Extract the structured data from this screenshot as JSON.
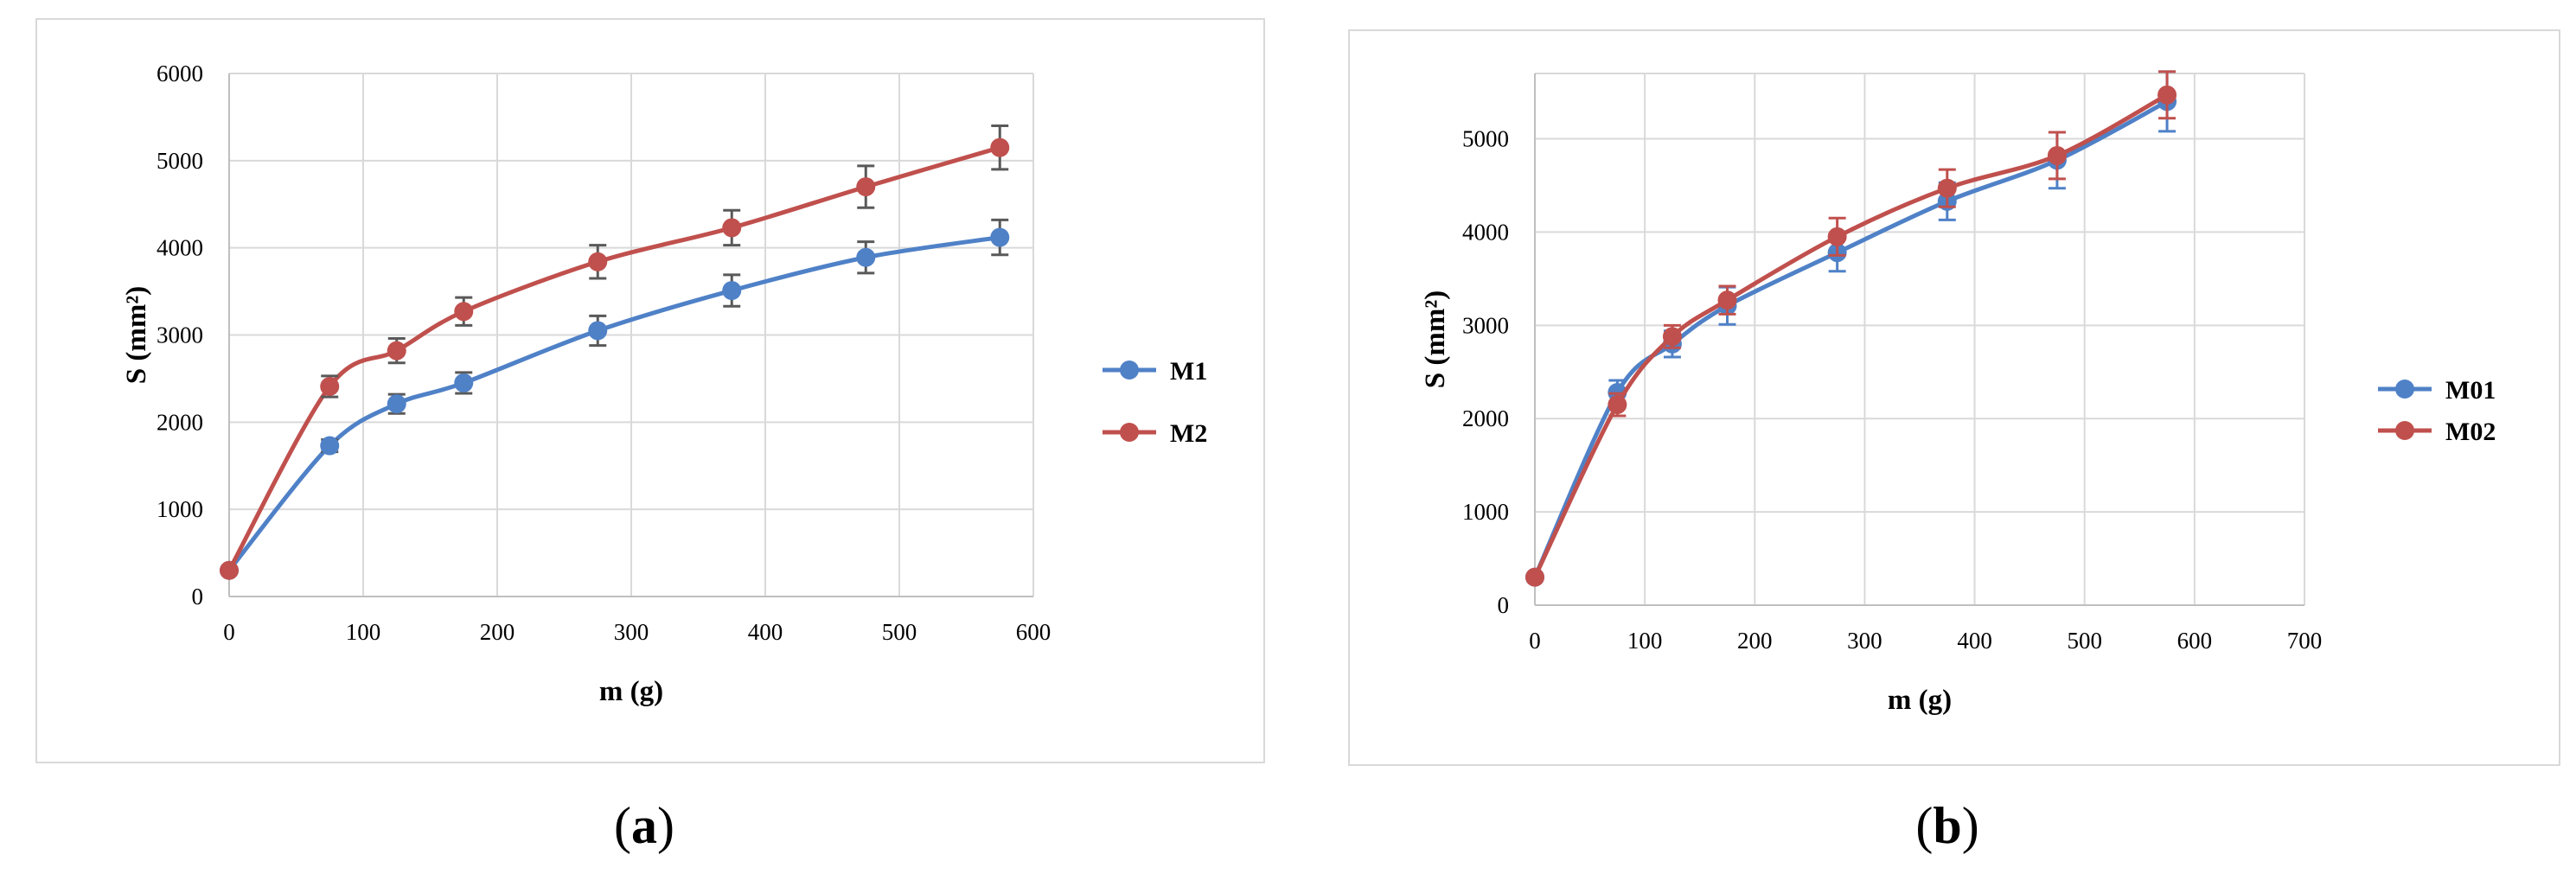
{
  "chart_data": [
    {
      "type": "line",
      "panel_label": "a",
      "xlabel": "m (g)",
      "ylabel": "S (mm²)",
      "xlim": [
        0,
        600
      ],
      "ylim": [
        0,
        6000
      ],
      "x_ticks": [
        "0",
        "100",
        "200",
        "300",
        "400",
        "500",
        "600"
      ],
      "y_ticks": [
        "0",
        "1000",
        "2000",
        "3000",
        "4000",
        "5000",
        "6000"
      ],
      "grid": "vertical",
      "legend": "right",
      "x": [
        0,
        75,
        125,
        175,
        275,
        375,
        475,
        575
      ],
      "series": [
        {
          "name": "M1",
          "color": "#4f81c7",
          "values": [
            300,
            1730,
            2210,
            2450,
            3050,
            3510,
            3890,
            4120
          ],
          "error": [
            0,
            70,
            110,
            120,
            170,
            180,
            180,
            200
          ]
        },
        {
          "name": "M2",
          "color": "#c0504d",
          "values": [
            300,
            2410,
            2820,
            3270,
            3840,
            4230,
            4700,
            5150
          ],
          "error": [
            0,
            120,
            140,
            160,
            190,
            200,
            240,
            250
          ]
        }
      ]
    },
    {
      "type": "line",
      "panel_label": "b",
      "xlabel": "m (g)",
      "ylabel": "S (mm²)",
      "xlim": [
        0,
        700
      ],
      "ylim": [
        0,
        5700
      ],
      "x_ticks": [
        "0",
        "100",
        "200",
        "300",
        "400",
        "500",
        "600",
        "700"
      ],
      "y_ticks": [
        "0",
        "1000",
        "2000",
        "3000",
        "4000",
        "5000"
      ],
      "grid": "both",
      "legend": "right",
      "x": [
        0,
        75,
        125,
        175,
        275,
        375,
        475,
        575
      ],
      "series": [
        {
          "name": "M01",
          "color": "#4f81c7",
          "values": [
            300,
            2280,
            2800,
            3210,
            3780,
            4330,
            4770,
            5400
          ],
          "error": [
            0,
            130,
            140,
            200,
            200,
            200,
            300,
            320
          ]
        },
        {
          "name": "M02",
          "color": "#c0504d",
          "values": [
            300,
            2150,
            2880,
            3270,
            3950,
            4470,
            4820,
            5470
          ],
          "error": [
            0,
            120,
            120,
            150,
            200,
            200,
            250,
            250
          ]
        }
      ]
    }
  ]
}
